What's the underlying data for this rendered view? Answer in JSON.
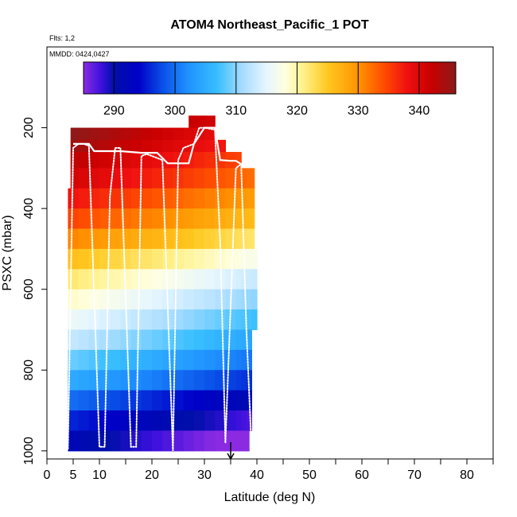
{
  "chart_data": {
    "type": "heatmap",
    "title": "ATOM4 Northeast_Pacific_1 POT",
    "flights_label": "Flts: 1,2",
    "date_label": "MMDD: 0424,0427",
    "xlabel": "Latitude (deg N)",
    "ylabel": "PSXC (mbar)",
    "xlim": [
      0,
      85
    ],
    "ylim": [
      1020,
      0
    ],
    "x_ticks": [
      0,
      5,
      10,
      15,
      20,
      25,
      30,
      35,
      40,
      45,
      50,
      55,
      60,
      65,
      70,
      75,
      80,
      85
    ],
    "x_tick_labels": [
      "0",
      "5",
      "10",
      "20",
      "30",
      "40",
      "50",
      "60",
      "70",
      "80"
    ],
    "x_tick_label_values": [
      0,
      5,
      10,
      20,
      30,
      40,
      50,
      60,
      70,
      80
    ],
    "y_ticks": [
      200,
      400,
      600,
      800,
      1000
    ],
    "y_tick_labels": [
      "200",
      "400",
      "600",
      "800",
      "1000"
    ],
    "colorbar": {
      "range": [
        285,
        346
      ],
      "ticks": [
        290,
        300,
        310,
        320,
        330,
        340
      ],
      "tick_labels": [
        "290",
        "300",
        "310",
        "320",
        "330",
        "340"
      ],
      "stops": [
        {
          "v": 285,
          "c": "#8a2be2"
        },
        {
          "v": 288,
          "c": "#3a10dc"
        },
        {
          "v": 290,
          "c": "#000fa8"
        },
        {
          "v": 294,
          "c": "#0000c8"
        },
        {
          "v": 298,
          "c": "#0a50e8"
        },
        {
          "v": 302,
          "c": "#1e90ff"
        },
        {
          "v": 307,
          "c": "#39bfff"
        },
        {
          "v": 311,
          "c": "#a6dcff"
        },
        {
          "v": 315,
          "c": "#e6f6ff"
        },
        {
          "v": 318,
          "c": "#ffffe0"
        },
        {
          "v": 321,
          "c": "#fff18a"
        },
        {
          "v": 325,
          "c": "#ffc820"
        },
        {
          "v": 330,
          "c": "#ff9400"
        },
        {
          "v": 334,
          "c": "#ff5000"
        },
        {
          "v": 338,
          "c": "#f01010"
        },
        {
          "v": 342,
          "c": "#c80000"
        },
        {
          "v": 346,
          "c": "#8b1a1a"
        }
      ]
    },
    "bins": {
      "lat_edges": [
        4,
        6,
        8,
        10,
        12,
        14,
        16,
        18,
        20,
        22,
        24,
        26,
        28,
        30,
        32,
        34,
        36,
        37,
        38,
        39,
        40
      ],
      "pres_edges": [
        170,
        200,
        230,
        260,
        300,
        350,
        400,
        450,
        500,
        550,
        600,
        650,
        700,
        750,
        800,
        850,
        900,
        950,
        1000
      ],
      "lat_min_by_row": [
        27,
        4.5,
        4.5,
        4.5,
        4.5,
        4,
        4,
        4,
        3.5,
        3.5,
        3.5,
        3.5,
        3.5,
        3.5,
        3.5,
        3.5,
        3.5,
        3.5
      ],
      "lat_max_by_row": [
        32,
        32,
        34,
        37,
        39.5,
        39.5,
        39.5,
        39.5,
        40,
        40,
        40,
        40,
        39,
        39,
        39,
        39,
        39,
        38.5
      ],
      "pot_by_row": [
        344,
        342,
        341,
        339,
        337,
        334,
        331,
        327,
        322,
        318,
        315,
        312,
        309,
        305,
        301,
        296,
        292,
        288
      ],
      "lat_gradient": -0.25
    },
    "flight_track": {
      "lat": [
        4,
        5,
        6,
        7,
        8,
        10,
        11,
        12,
        13,
        14,
        16,
        17,
        18,
        19,
        20,
        22,
        24,
        25,
        26,
        28,
        29,
        30,
        32,
        33,
        34,
        35,
        36,
        37,
        38,
        39
      ],
      "pres": [
        995,
        250,
        240,
        240,
        245,
        990,
        990,
        370,
        250,
        250,
        990,
        990,
        270,
        265,
        270,
        280,
        1000,
        280,
        250,
        240,
        200,
        200,
        205,
        480,
        980,
        640,
        300,
        290,
        700,
        1000
      ]
    },
    "level_line": {
      "lat": [
        5,
        8,
        9,
        14,
        18,
        21,
        23,
        27,
        28,
        30,
        32,
        33,
        35,
        36,
        37,
        38
      ],
      "pres": [
        240,
        240,
        258,
        258,
        262,
        262,
        288,
        288,
        240,
        200,
        200,
        280,
        282,
        282,
        290,
        290
      ]
    },
    "marker_arrow_lat": 35
  }
}
